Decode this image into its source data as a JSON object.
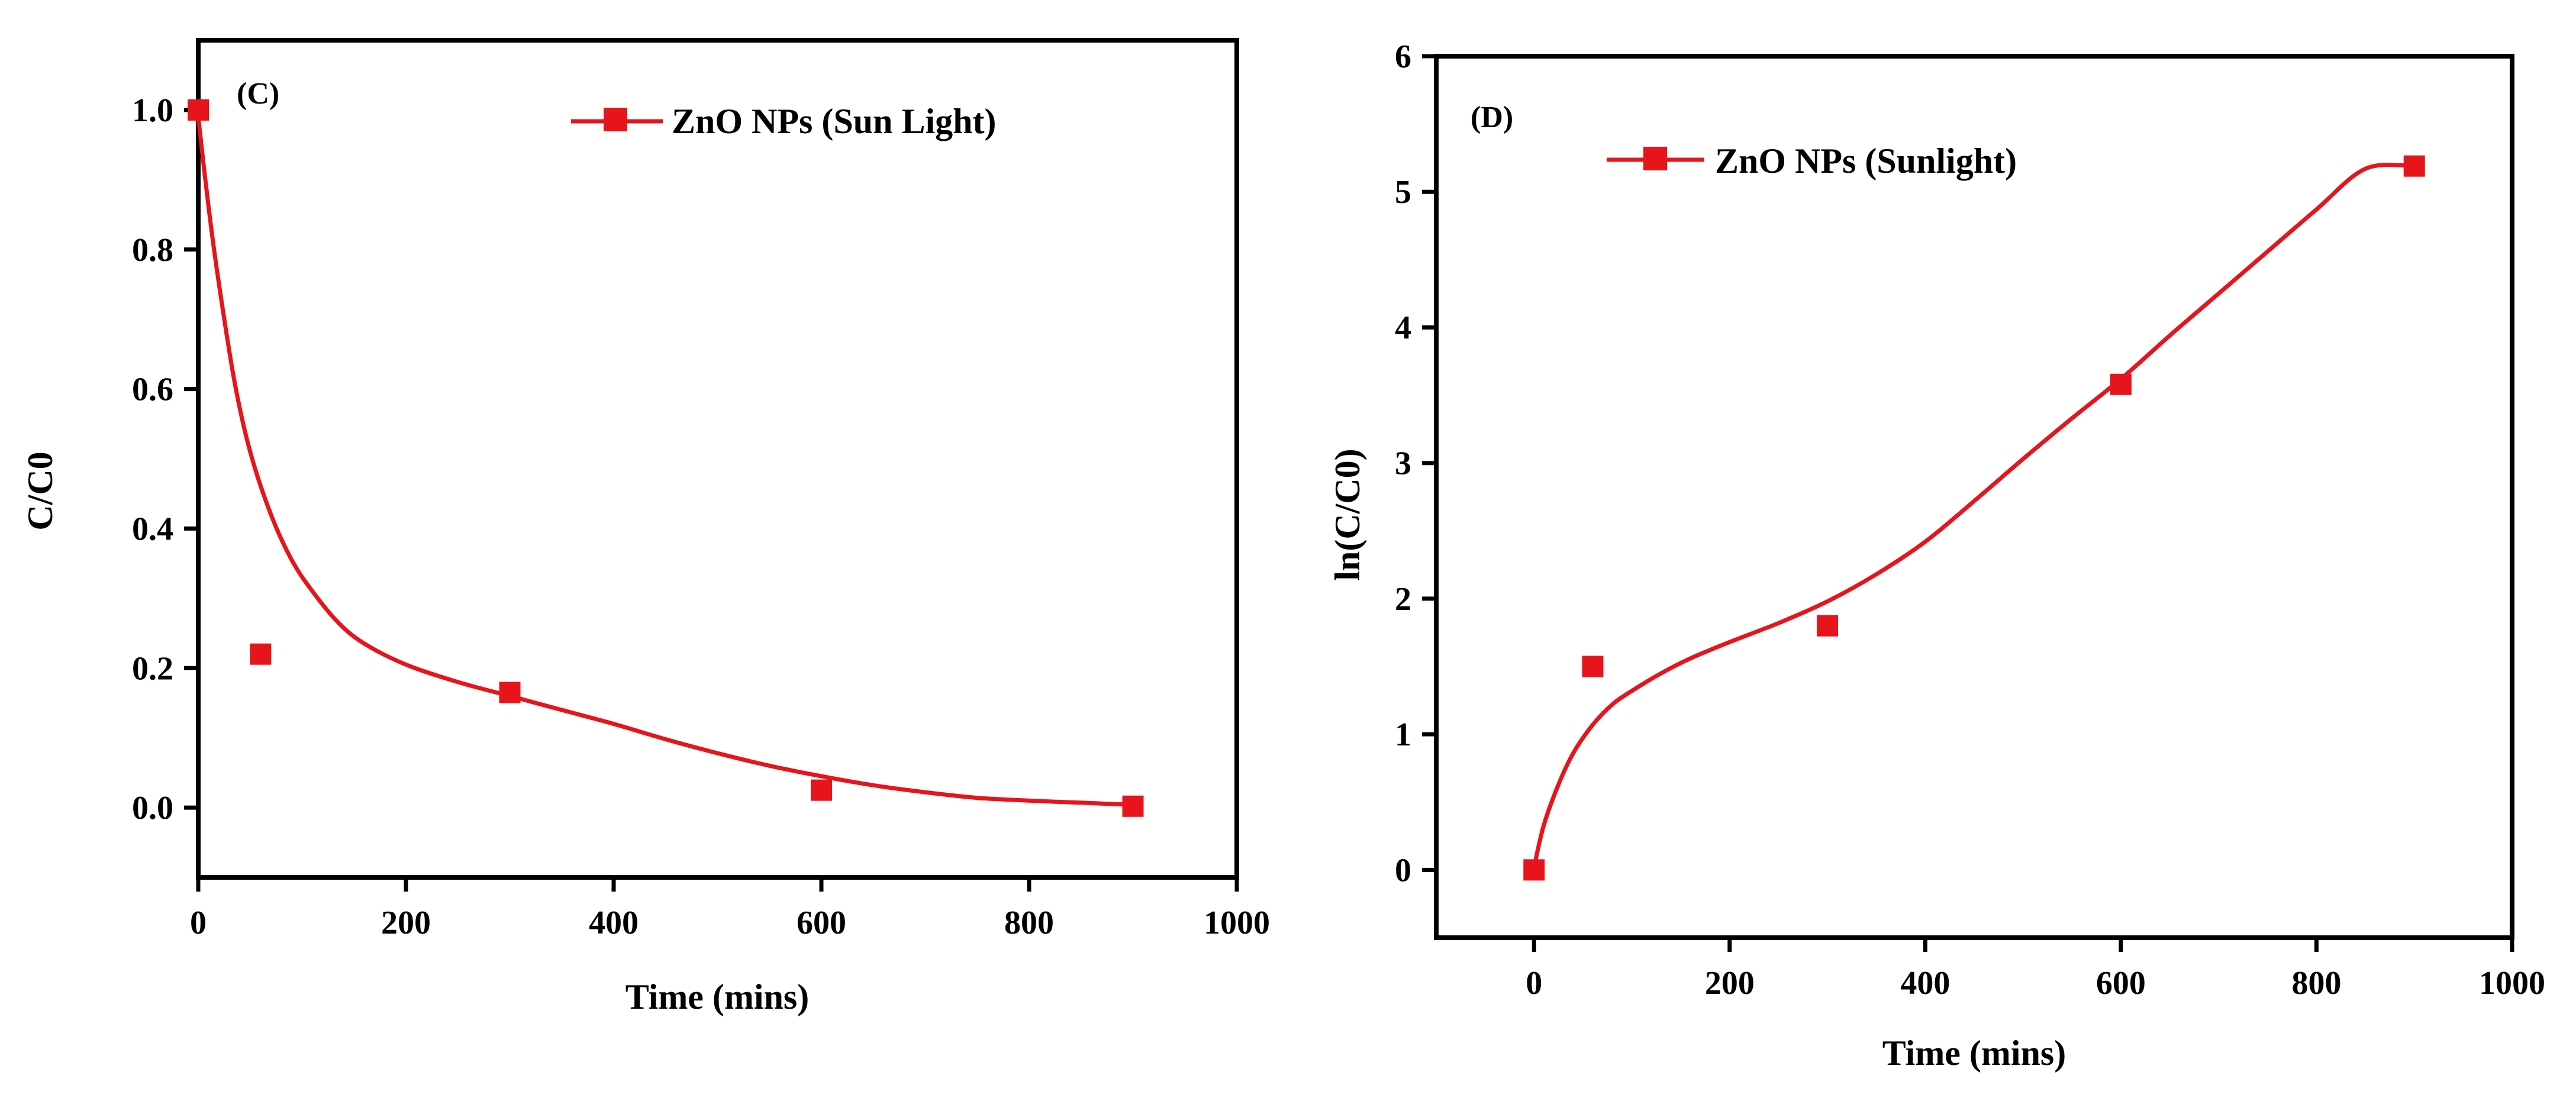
{
  "chart_data": [
    {
      "type": "line",
      "panel_label": "(C)",
      "title": "",
      "xlabel": "Time (mins)",
      "ylabel": "C/C0",
      "xlim": [
        0,
        1000
      ],
      "ylim": [
        -0.1,
        1.1
      ],
      "xticks": [
        0,
        200,
        400,
        600,
        800,
        1000
      ],
      "xtick_labels": [
        "0",
        "200",
        "400",
        "600",
        "800",
        "1000"
      ],
      "yticks": [
        0.0,
        0.2,
        0.4,
        0.6,
        0.8,
        1.0
      ],
      "ytick_labels": [
        "0.0",
        "0.2",
        "0.4",
        "0.6",
        "0.8",
        "1.0"
      ],
      "legend_position": "top-right",
      "series": [
        {
          "name": "ZnO NPs (Sun Light)",
          "color": "#e8141c",
          "marker": "square",
          "x": [
            0,
            60,
            300,
            600,
            900
          ],
          "y": [
            1.0,
            0.22,
            0.165,
            0.025,
            0.002
          ]
        }
      ],
      "fit_curve": {
        "x": [
          0,
          10,
          20,
          35,
          50,
          70,
          90,
          110,
          135,
          160,
          200,
          250,
          300,
          350,
          400,
          450,
          500,
          550,
          600,
          650,
          700,
          750,
          800,
          850,
          900
        ],
        "y": [
          0.99,
          0.86,
          0.75,
          0.61,
          0.51,
          0.42,
          0.355,
          0.31,
          0.265,
          0.235,
          0.205,
          0.18,
          0.16,
          0.14,
          0.12,
          0.098,
          0.078,
          0.06,
          0.045,
          0.032,
          0.022,
          0.014,
          0.01,
          0.007,
          0.004
        ]
      }
    },
    {
      "type": "line",
      "panel_label": "(D)",
      "title": "",
      "xlabel": "Time (mins)",
      "ylabel": "ln(C/C0)",
      "xlim": [
        -100,
        1000
      ],
      "ylim": [
        -0.5,
        6
      ],
      "xticks": [
        0,
        200,
        400,
        600,
        800,
        1000
      ],
      "xtick_labels": [
        "0",
        "200",
        "400",
        "600",
        "800",
        "1000"
      ],
      "yticks": [
        0,
        1,
        2,
        3,
        4,
        5,
        6
      ],
      "ytick_labels": [
        "0",
        "1",
        "2",
        "3",
        "4",
        "5",
        "6"
      ],
      "legend_position": "top-left",
      "series": [
        {
          "name": "ZnO NPs (Sunlight)",
          "color": "#e8141c",
          "marker": "square",
          "x": [
            0,
            60,
            300,
            600,
            900
          ],
          "y": [
            0.0,
            1.5,
            1.8,
            3.58,
            5.19
          ]
        }
      ],
      "fit_curve": {
        "x": [
          0,
          10,
          25,
          40,
          60,
          80,
          100,
          130,
          160,
          200,
          250,
          300,
          350,
          400,
          450,
          500,
          550,
          600,
          650,
          700,
          750,
          800,
          850,
          900
        ],
        "y": [
          0.02,
          0.33,
          0.63,
          0.86,
          1.07,
          1.22,
          1.32,
          1.45,
          1.56,
          1.68,
          1.82,
          1.98,
          2.18,
          2.42,
          2.72,
          3.03,
          3.33,
          3.62,
          3.94,
          4.25,
          4.56,
          4.87,
          5.17,
          5.19
        ]
      }
    }
  ]
}
